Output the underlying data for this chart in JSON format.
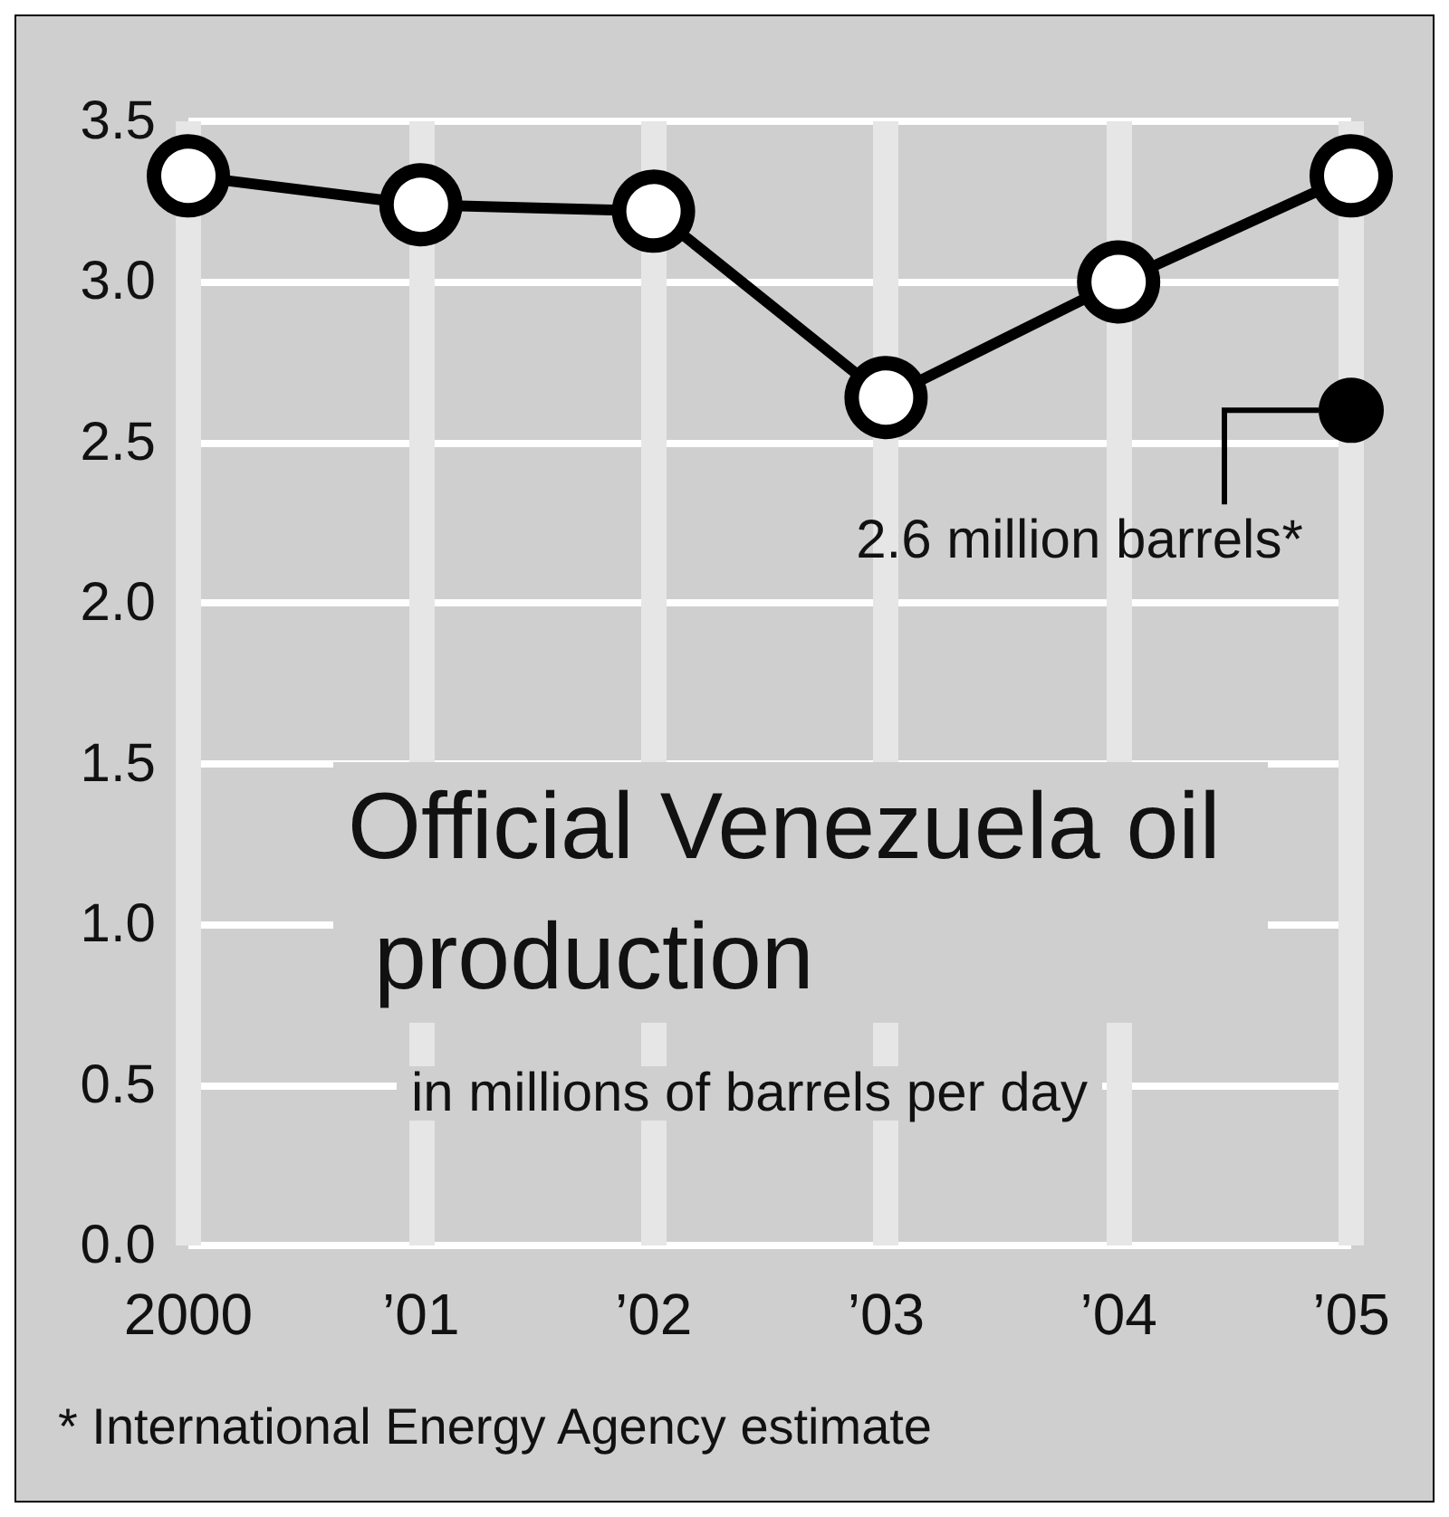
{
  "chart_data": {
    "type": "line",
    "title": "Official Venezuela oil production",
    "subtitle": "in millions of barrels per day",
    "categories": [
      "2000",
      "’01",
      "’02",
      "’03",
      "’04",
      "’05"
    ],
    "series": [
      {
        "color": "#000000",
        "values": [
          3.33,
          3.24,
          3.22,
          2.64,
          3.0,
          3.33
        ]
      },
      {
        "type": "scatter",
        "color": "#000000",
        "values": [
          null,
          null,
          null,
          null,
          null,
          2.6
        ]
      }
    ],
    "ylim": [
      0,
      3.5
    ],
    "yticks": [
      {
        "value": 0,
        "label": "0.0"
      },
      0.5,
      {
        "value": 1,
        "label": "1.0"
      },
      1.5,
      {
        "value": 2,
        "label": "2.0"
      },
      2.5,
      {
        "value": 3,
        "label": "3.0"
      },
      3.5
    ],
    "grid": true,
    "marker": "circle",
    "line_style": "solid",
    "annotations": [
      {
        "text": "2.6 million barrels*",
        "x": "’05",
        "y": 2.6
      },
      "* International Energy Agency estimate"
    ]
  }
}
